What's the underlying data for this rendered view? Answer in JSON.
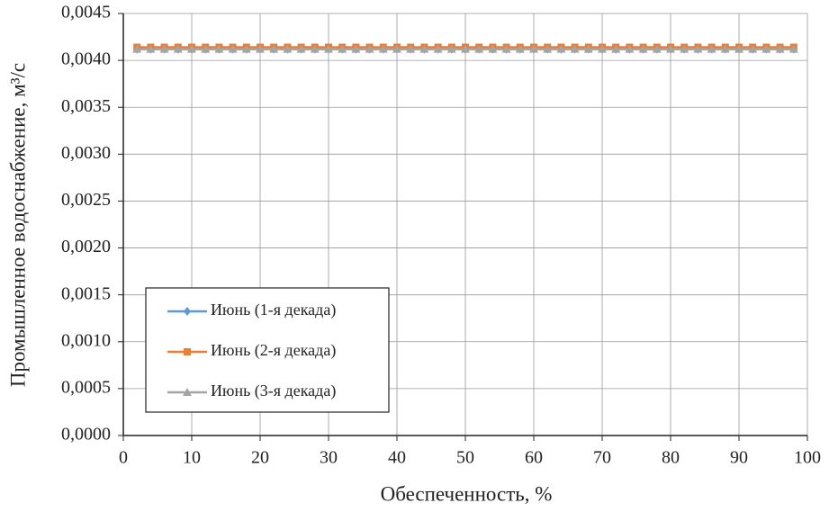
{
  "chart_data": {
    "type": "line",
    "xlabel": "Обеспеченность, %",
    "ylabel": "Промышленное водоснабжение, м³/с",
    "x": [
      2,
      4,
      6,
      8,
      10,
      12,
      14,
      16,
      18,
      20,
      22,
      24,
      26,
      28,
      30,
      32,
      34,
      36,
      38,
      40,
      42,
      44,
      46,
      48,
      50,
      52,
      54,
      56,
      58,
      60,
      62,
      64,
      66,
      68,
      70,
      72,
      74,
      76,
      78,
      80,
      82,
      84,
      86,
      88,
      90,
      92,
      94,
      96,
      98
    ],
    "series": [
      {
        "name": "Июнь (1-я декада)",
        "color": "#5b9bd5",
        "marker": "diamond",
        "values": [
          0.00412,
          0.00412,
          0.00412,
          0.00412,
          0.00412,
          0.00412,
          0.00412,
          0.00412,
          0.00412,
          0.00412,
          0.00412,
          0.00412,
          0.00412,
          0.00412,
          0.00412,
          0.00412,
          0.00412,
          0.00412,
          0.00412,
          0.00412,
          0.00412,
          0.00412,
          0.00412,
          0.00412,
          0.00412,
          0.00412,
          0.00412,
          0.00412,
          0.00412,
          0.00412,
          0.00412,
          0.00412,
          0.00412,
          0.00412,
          0.00412,
          0.00412,
          0.00412,
          0.00412,
          0.00412,
          0.00412,
          0.00412,
          0.00412,
          0.00412,
          0.00412,
          0.00412,
          0.00412,
          0.00412,
          0.00412,
          0.00412
        ]
      },
      {
        "name": "Июнь (2-я декада)",
        "color": "#ed7d31",
        "marker": "square",
        "values": [
          0.00414,
          0.00414,
          0.00414,
          0.00414,
          0.00414,
          0.00414,
          0.00414,
          0.00414,
          0.00414,
          0.00414,
          0.00414,
          0.00414,
          0.00414,
          0.00414,
          0.00414,
          0.00414,
          0.00414,
          0.00414,
          0.00414,
          0.00414,
          0.00414,
          0.00414,
          0.00414,
          0.00414,
          0.00414,
          0.00414,
          0.00414,
          0.00414,
          0.00414,
          0.00414,
          0.00414,
          0.00414,
          0.00414,
          0.00414,
          0.00414,
          0.00414,
          0.00414,
          0.00414,
          0.00414,
          0.00414,
          0.00414,
          0.00414,
          0.00414,
          0.00414,
          0.00414,
          0.00414,
          0.00414,
          0.00414,
          0.00414
        ]
      },
      {
        "name": "Июнь (3-я декада)",
        "color": "#a5a5a5",
        "marker": "triangle",
        "values": [
          0.00412,
          0.00412,
          0.00412,
          0.00412,
          0.00412,
          0.00412,
          0.00412,
          0.00412,
          0.00412,
          0.00412,
          0.00412,
          0.00412,
          0.00412,
          0.00412,
          0.00412,
          0.00412,
          0.00412,
          0.00412,
          0.00412,
          0.00412,
          0.00412,
          0.00412,
          0.00412,
          0.00412,
          0.00412,
          0.00412,
          0.00412,
          0.00412,
          0.00412,
          0.00412,
          0.00412,
          0.00412,
          0.00412,
          0.00412,
          0.00412,
          0.00412,
          0.00412,
          0.00412,
          0.00412,
          0.00412,
          0.00412,
          0.00412,
          0.00412,
          0.00412,
          0.00412,
          0.00412,
          0.00412,
          0.00412,
          0.00412
        ]
      }
    ],
    "xlim": [
      0,
      100
    ],
    "xticks": [
      0,
      10,
      20,
      30,
      40,
      50,
      60,
      70,
      80,
      90,
      100
    ],
    "ylim": [
      0,
      0.0045
    ],
    "yticks": [
      {
        "value": 0,
        "label": "0,0000"
      },
      {
        "value": 0.0005,
        "label": "0,0005"
      },
      {
        "value": 0.001,
        "label": "0,0010"
      },
      {
        "value": 0.0015,
        "label": "0,0015"
      },
      {
        "value": 0.002,
        "label": "0,0020"
      },
      {
        "value": 0.0025,
        "label": "0,0025"
      },
      {
        "value": 0.003,
        "label": "0,0030"
      },
      {
        "value": 0.0035,
        "label": "0,0035"
      },
      {
        "value": 0.004,
        "label": "0,0040"
      },
      {
        "value": 0.0045,
        "label": "0,0045"
      }
    ],
    "grid": true,
    "legend": "lower left"
  }
}
